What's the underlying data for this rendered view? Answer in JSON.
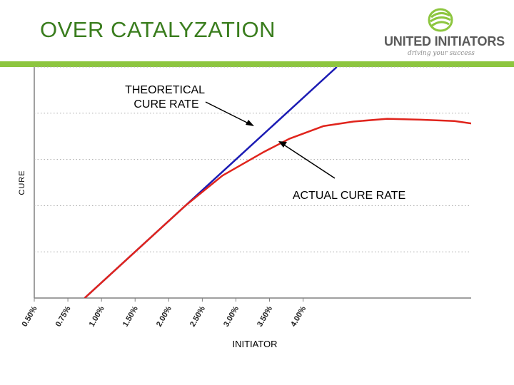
{
  "header": {
    "title": "OVER CATALYZATION",
    "brand_name": "UNITED INITIATORS",
    "tagline": "driving your success",
    "colors": {
      "title": "#3a7d1e",
      "bar": "#8dc63f",
      "logo_mark": "#8dc63f"
    }
  },
  "chart_data": {
    "type": "line",
    "title": "",
    "xlabel": "INITIATOR",
    "ylabel": "CURE",
    "categories": [
      "0.50%",
      "0.75%",
      "1.00%",
      "1.50%",
      "2.00%",
      "2.50%",
      "3.00%",
      "3.50%",
      "4.00%"
    ],
    "xlim": [
      0,
      13
    ],
    "ylim": [
      0,
      5
    ],
    "grid": true,
    "series": [
      {
        "name": "THEORETICAL CURE RATE",
        "color": "#1c1cb4",
        "points": [
          [
            1.5,
            0
          ],
          [
            3.0,
            1.0
          ],
          [
            4.5,
            2.0
          ],
          [
            6.0,
            3.0
          ],
          [
            7.5,
            4.0
          ],
          [
            9.0,
            5.0
          ]
        ]
      },
      {
        "name": "ACTUAL CURE RATE",
        "color": "#e0241c",
        "points": [
          [
            1.5,
            0
          ],
          [
            3.0,
            1.0
          ],
          [
            4.5,
            2.0
          ],
          [
            5.6,
            2.65
          ],
          [
            6.8,
            3.15
          ],
          [
            7.6,
            3.45
          ],
          [
            8.6,
            3.72
          ],
          [
            9.5,
            3.82
          ],
          [
            10.5,
            3.88
          ],
          [
            11.5,
            3.86
          ],
          [
            12.5,
            3.83
          ],
          [
            13.0,
            3.78
          ]
        ]
      }
    ],
    "annotations": [
      {
        "label": "THEORETICAL\nCURE RATE",
        "lines": [
          "THEORETICAL",
          "CURE RATE"
        ],
        "points_to": "THEORETICAL CURE RATE"
      },
      {
        "label": "ACTUAL CURE RATE",
        "lines": [
          "ACTUAL CURE RATE"
        ],
        "points_to": "ACTUAL CURE RATE"
      }
    ]
  }
}
